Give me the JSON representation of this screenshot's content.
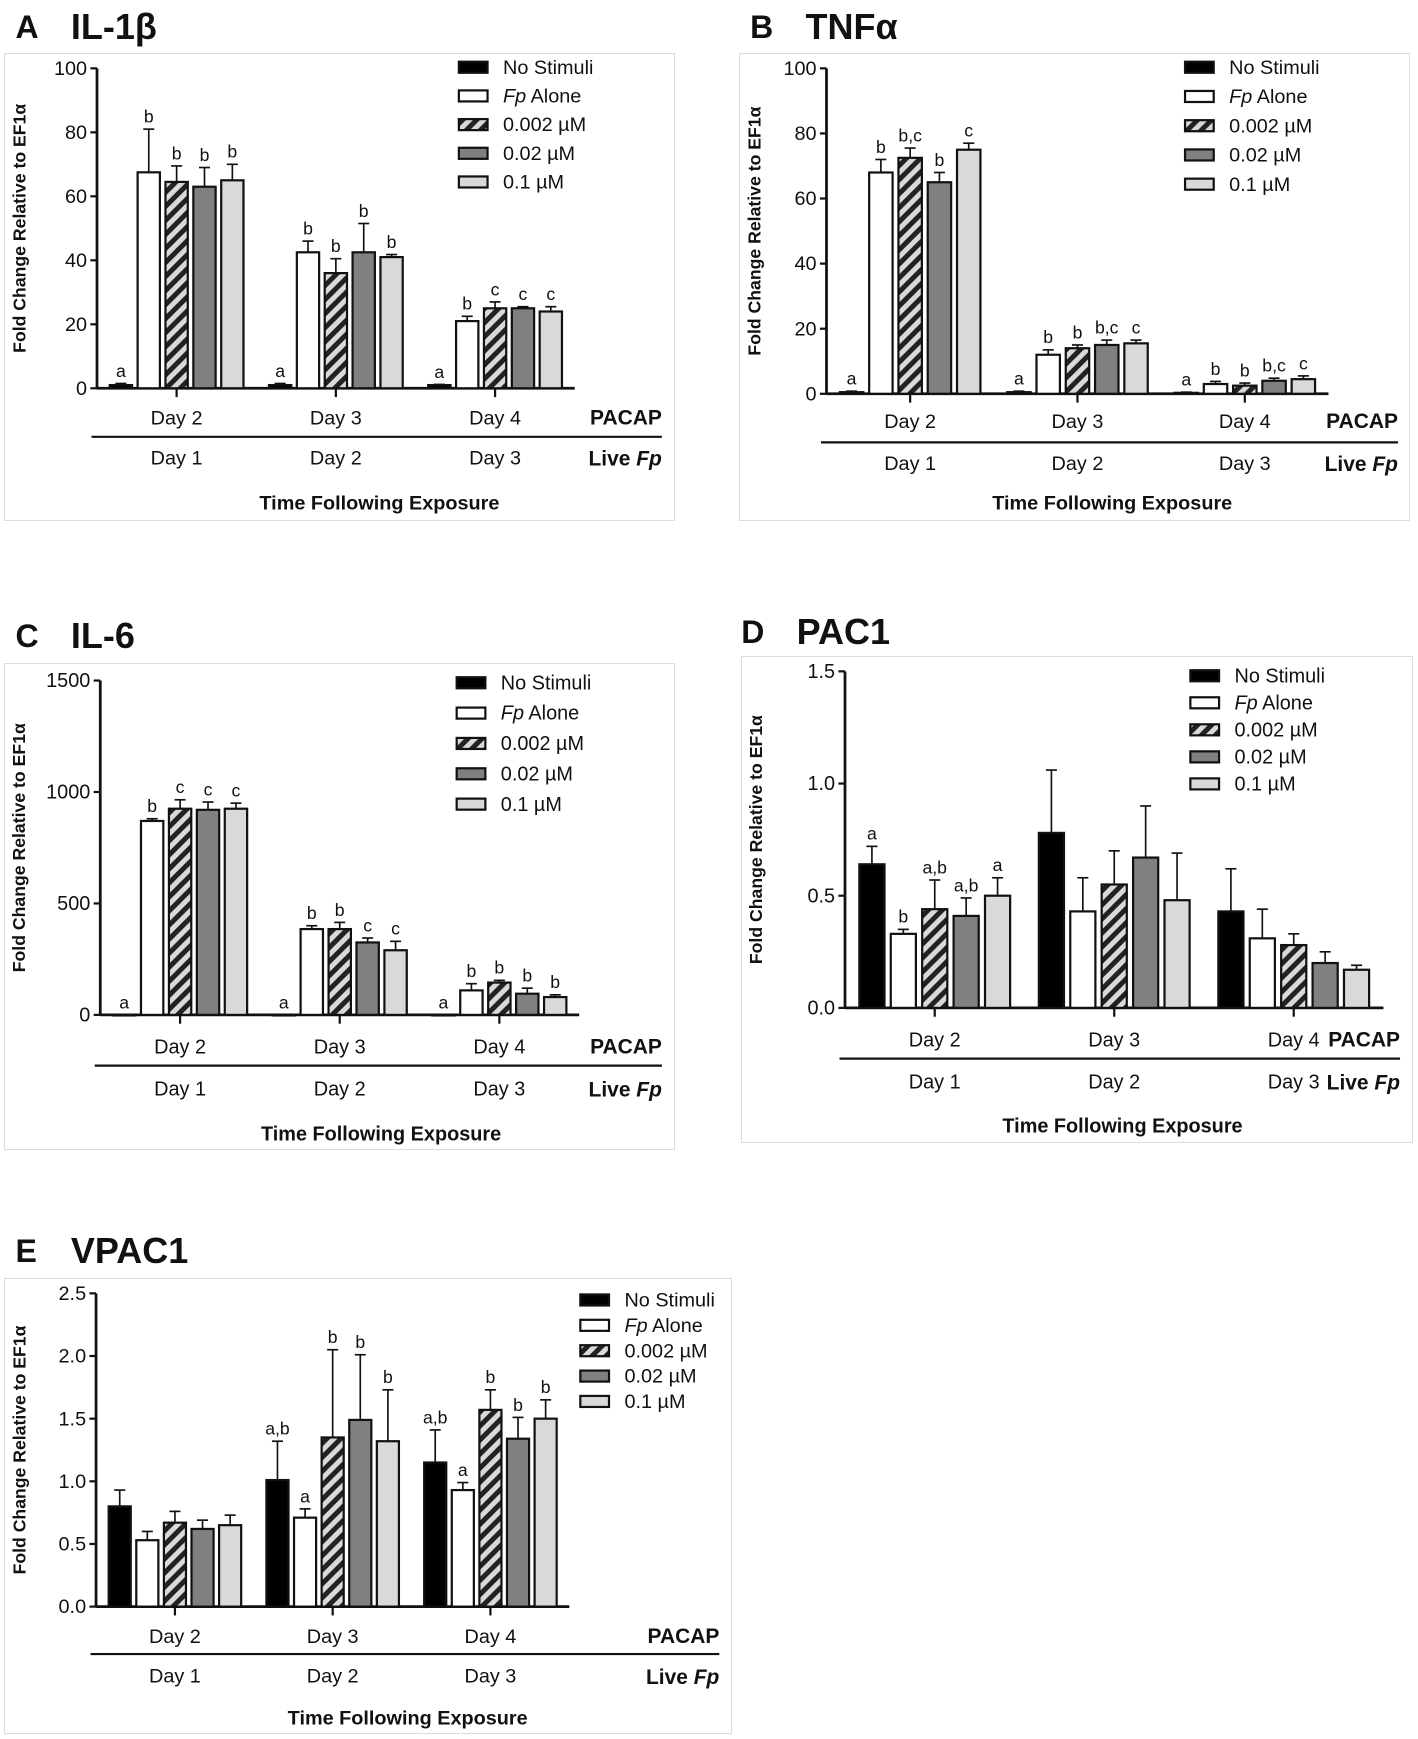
{
  "legend": [
    "No Stimuli",
    "Fp Alone",
    "0.002 µM",
    "0.02 µM",
    "0.1 µM"
  ],
  "colors": {
    "no_stimuli": "#000000",
    "fp_alone": "#ffffff",
    "pacap_0002": "#d9d9d9",
    "pacap_002": "#808080",
    "pacap_01": "#d9d9d9",
    "stroke": "#111111"
  },
  "chart_data": [
    {
      "id": "A",
      "letter": "A",
      "title": "IL-1β",
      "type": "bar",
      "ylabel": "Fold Change Relative to EF1α",
      "xlabel": "Time Following Exposure",
      "ylim": [
        0,
        100
      ],
      "yticks": [
        "0",
        "20",
        "40",
        "60",
        "80",
        "100"
      ],
      "ytick_values": [
        0,
        20,
        40,
        60,
        80,
        100
      ],
      "row1_label": "PACAP",
      "row1": [
        "Day 2",
        "Day 3",
        "Day 4"
      ],
      "row2_label": "Live Fp",
      "row2": [
        "Day 1",
        "Day 2",
        "Day 3"
      ],
      "series": [
        {
          "name": "No Stimuli",
          "values": [
            1,
            1,
            1
          ],
          "err_top": [
            1.5,
            1.5,
            1.2
          ],
          "labels": [
            "a",
            "a",
            "a"
          ]
        },
        {
          "name": "Fp Alone",
          "values": [
            67.5,
            42.5,
            21
          ],
          "err_top": [
            81,
            46,
            22.5
          ],
          "labels": [
            "b",
            "b",
            "b"
          ]
        },
        {
          "name": "0.002 µM",
          "values": [
            64.5,
            36,
            25
          ],
          "err_top": [
            69.5,
            40.5,
            27
          ],
          "labels": [
            "b",
            "b",
            "c"
          ]
        },
        {
          "name": "0.02 µM",
          "values": [
            63,
            42.5,
            25
          ],
          "err_top": [
            69,
            51.5,
            25.5
          ],
          "labels": [
            "b",
            "b",
            "c"
          ]
        },
        {
          "name": "0.1 µM",
          "values": [
            65,
            41,
            24
          ],
          "err_top": [
            70,
            41.8,
            25.5
          ],
          "labels": [
            "b",
            "b",
            "c"
          ]
        }
      ]
    },
    {
      "id": "B",
      "letter": "B",
      "title": "TNFα",
      "type": "bar",
      "ylabel": "Fold Change Relative to EF1α",
      "xlabel": "Time Following Exposure",
      "ylim": [
        0,
        100
      ],
      "yticks": [
        "0",
        "20",
        "40",
        "60",
        "80",
        "100"
      ],
      "ytick_values": [
        0,
        20,
        40,
        60,
        80,
        100
      ],
      "row1_label": "PACAP",
      "row1": [
        "Day 2",
        "Day 3",
        "Day 4"
      ],
      "row2_label": "Live Fp",
      "row2": [
        "Day 1",
        "Day 2",
        "Day 3"
      ],
      "series": [
        {
          "name": "No Stimuli",
          "values": [
            0.5,
            0.5,
            0.3
          ],
          "err_top": [
            0.8,
            0.8,
            0.5
          ],
          "labels": [
            "a",
            "a",
            "a"
          ]
        },
        {
          "name": "Fp Alone",
          "values": [
            68,
            12,
            3
          ],
          "err_top": [
            72,
            13.5,
            3.8
          ],
          "labels": [
            "b",
            "b",
            "b"
          ]
        },
        {
          "name": "0.002 µM",
          "values": [
            72.5,
            14,
            2.5
          ],
          "err_top": [
            75.5,
            15,
            3.3
          ],
          "labels": [
            "b,c",
            "b",
            "b"
          ]
        },
        {
          "name": "0.02 µM",
          "values": [
            65,
            15,
            4
          ],
          "err_top": [
            68,
            16.5,
            4.8
          ],
          "labels": [
            "b",
            "b,c",
            "b,c"
          ]
        },
        {
          "name": "0.1 µM",
          "values": [
            75,
            15.5,
            4.5
          ],
          "err_top": [
            77,
            16.5,
            5.5
          ],
          "labels": [
            "c",
            "c",
            "c"
          ]
        }
      ]
    },
    {
      "id": "C",
      "letter": "C",
      "title": "IL-6",
      "type": "bar",
      "ylabel": "Fold Change Relative to EF1α",
      "xlabel": "Time Following Exposure",
      "ylim": [
        0,
        1500
      ],
      "yticks": [
        "0",
        "500",
        "1000",
        "1500"
      ],
      "ytick_values": [
        0,
        500,
        1000,
        1500
      ],
      "row1_label": "PACAP",
      "row1": [
        "Day 2",
        "Day 3",
        "Day 4"
      ],
      "row2_label": "Live Fp",
      "row2": [
        "Day 1",
        "Day 2",
        "Day 3"
      ],
      "series": [
        {
          "name": "No Stimuli",
          "values": [
            0,
            0,
            0
          ],
          "err_top": [
            0,
            0,
            0
          ],
          "labels": [
            "a",
            "a",
            "a"
          ]
        },
        {
          "name": "Fp Alone",
          "values": [
            870,
            385,
            110
          ],
          "err_top": [
            880,
            400,
            140
          ],
          "labels": [
            "b",
            "b",
            "b"
          ]
        },
        {
          "name": "0.002 µM",
          "values": [
            925,
            385,
            145
          ],
          "err_top": [
            965,
            415,
            155
          ],
          "labels": [
            "c",
            "b",
            "b"
          ]
        },
        {
          "name": "0.02 µM",
          "values": [
            920,
            325,
            95
          ],
          "err_top": [
            955,
            345,
            120
          ],
          "labels": [
            "c",
            "c",
            "b"
          ]
        },
        {
          "name": "0.1 µM",
          "values": [
            925,
            290,
            80
          ],
          "err_top": [
            950,
            330,
            90
          ],
          "labels": [
            "c",
            "c",
            "b"
          ]
        }
      ]
    },
    {
      "id": "D",
      "letter": "D",
      "title": "PAC1",
      "type": "bar",
      "ylabel": "Fold Change Relative to EF1α",
      "xlabel": "Time Following Exposure",
      "ylim": [
        0,
        1.5
      ],
      "yticks": [
        "0.0",
        "0.5",
        "1.0",
        "1.5"
      ],
      "ytick_values": [
        0,
        0.5,
        1,
        1.5
      ],
      "row1_label": "PACAP",
      "row1": [
        "Day 2",
        "Day 3",
        "Day 4"
      ],
      "row2_label": "Live Fp",
      "row2": [
        "Day 1",
        "Day 2",
        "Day 3"
      ],
      "series": [
        {
          "name": "No Stimuli",
          "values": [
            0.64,
            0.78,
            0.43
          ],
          "err_top": [
            0.72,
            1.06,
            0.62
          ],
          "labels": [
            "a",
            "",
            ""
          ]
        },
        {
          "name": "Fp Alone",
          "values": [
            0.33,
            0.43,
            0.31
          ],
          "err_top": [
            0.35,
            0.58,
            0.44
          ],
          "labels": [
            "b",
            "",
            ""
          ]
        },
        {
          "name": "0.002 µM",
          "values": [
            0.44,
            0.55,
            0.28
          ],
          "err_top": [
            0.57,
            0.7,
            0.33
          ],
          "labels": [
            "a,b",
            "",
            ""
          ]
        },
        {
          "name": "0.02 µM",
          "values": [
            0.41,
            0.67,
            0.2
          ],
          "err_top": [
            0.49,
            0.9,
            0.25
          ],
          "labels": [
            "a,b",
            "",
            ""
          ]
        },
        {
          "name": "0.1 µM",
          "values": [
            0.5,
            0.48,
            0.17
          ],
          "err_top": [
            0.58,
            0.69,
            0.19
          ],
          "labels": [
            "a",
            "",
            ""
          ]
        }
      ]
    },
    {
      "id": "E",
      "letter": "E",
      "title": "VPAC1",
      "type": "bar",
      "ylabel": "Fold Change Relative to EF1α",
      "xlabel": "Time Following Exposure",
      "ylim": [
        0,
        2.5
      ],
      "yticks": [
        "0.0",
        "0.5",
        "1.0",
        "1.5",
        "2.0",
        "2.5"
      ],
      "ytick_values": [
        0,
        0.5,
        1,
        1.5,
        2,
        2.5
      ],
      "row1_label": "PACAP",
      "row1": [
        "Day 2",
        "Day 3",
        "Day 4"
      ],
      "row2_label": "Live Fp",
      "row2": [
        "Day 1",
        "Day 2",
        "Day 3"
      ],
      "series": [
        {
          "name": "No Stimuli",
          "values": [
            0.8,
            1.01,
            1.15
          ],
          "err_top": [
            0.93,
            1.32,
            1.41
          ],
          "labels": [
            "",
            "a,b",
            "a,b"
          ]
        },
        {
          "name": "Fp Alone",
          "values": [
            0.53,
            0.71,
            0.93
          ],
          "err_top": [
            0.6,
            0.78,
            0.99
          ],
          "labels": [
            "",
            "a",
            "a"
          ]
        },
        {
          "name": "0.002 µM",
          "values": [
            0.67,
            1.35,
            1.57
          ],
          "err_top": [
            0.76,
            2.05,
            1.73
          ],
          "labels": [
            "",
            "b",
            "b"
          ]
        },
        {
          "name": "0.02 µM",
          "values": [
            0.62,
            1.49,
            1.34
          ],
          "err_top": [
            0.69,
            2.01,
            1.51
          ],
          "labels": [
            "",
            "b",
            "b"
          ]
        },
        {
          "name": "0.1 µM",
          "values": [
            0.65,
            1.32,
            1.5
          ],
          "err_top": [
            0.73,
            1.73,
            1.65
          ],
          "labels": [
            "",
            "b",
            "b"
          ]
        }
      ]
    }
  ]
}
